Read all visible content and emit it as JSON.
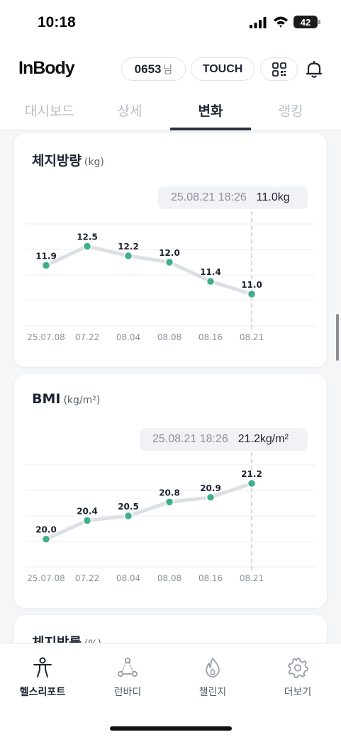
{
  "status_bar": {
    "time": "10:18",
    "battery": "42"
  },
  "header": {
    "logo": "InBody",
    "user_id": "0653",
    "user_suffix": "님",
    "touch_label": "TOUCH"
  },
  "tabs": [
    {
      "label": "대시보드",
      "active": false
    },
    {
      "label": "상세",
      "active": false
    },
    {
      "label": "변화",
      "active": true
    },
    {
      "label": "랭킹",
      "active": false
    }
  ],
  "cards": [
    {
      "title": "체지방량",
      "unit": "(kg)",
      "tooltip": {
        "date": "25.08.21 18:26",
        "value": "11.0kg"
      },
      "chart_data": {
        "type": "line",
        "categories": [
          "25.07.08",
          "07.22",
          "08.04",
          "08.08",
          "08.16",
          "08.21"
        ],
        "values": [
          11.9,
          12.5,
          12.2,
          12.0,
          11.4,
          11.0
        ],
        "labels": [
          "11.9",
          "12.5",
          "12.2",
          "12.0",
          "11.4",
          "11.0"
        ],
        "ylim": [
          10.0,
          13.2
        ],
        "highlight_index": 5,
        "grid": true,
        "line_color": "#dcdfe5",
        "point_color": "#3fae8a"
      }
    },
    {
      "title": "BMI",
      "unit": "(kg/m²)",
      "tooltip": {
        "date": "25.08.21 18:26",
        "value": "21.2kg/m²"
      },
      "chart_data": {
        "type": "line",
        "categories": [
          "25.07.08",
          "07.22",
          "08.04",
          "08.08",
          "08.16",
          "08.21"
        ],
        "values": [
          20.0,
          20.4,
          20.5,
          20.8,
          20.9,
          21.2
        ],
        "labels": [
          "20.0",
          "20.4",
          "20.5",
          "20.8",
          "20.9",
          "21.2"
        ],
        "ylim": [
          19.4,
          21.6
        ],
        "highlight_index": 5,
        "grid": true,
        "line_color": "#dcdfe5",
        "point_color": "#3fae8a"
      }
    },
    {
      "title": "체지방률",
      "unit": "(%)"
    }
  ],
  "bottom_nav": [
    {
      "label": "헬스리포트",
      "icon": "person-icon",
      "active": true
    },
    {
      "label": "런바디",
      "icon": "triangle-nodes-icon",
      "active": false
    },
    {
      "label": "챌린지",
      "icon": "flame-icon",
      "active": false
    },
    {
      "label": "더보기",
      "icon": "gear-icon",
      "active": false
    }
  ]
}
